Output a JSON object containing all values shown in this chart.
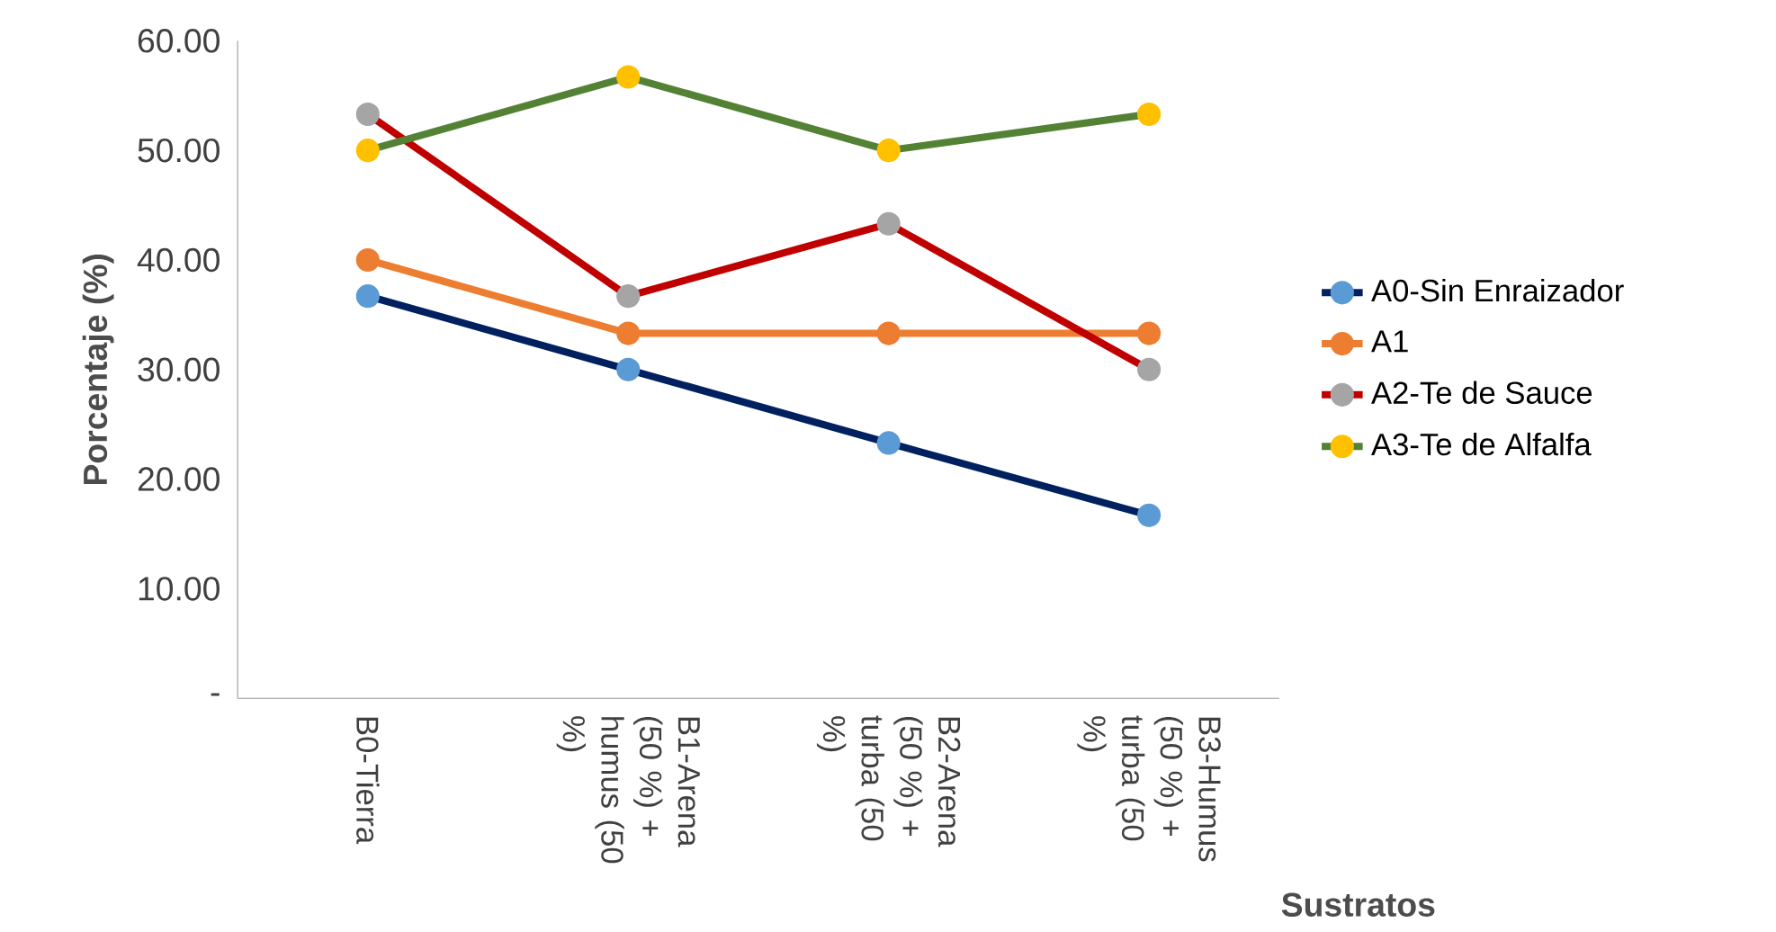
{
  "chart_data": {
    "type": "line",
    "xlabel": "Sustratos",
    "ylabel": "Porcentaje (%)",
    "categories": [
      "B0-Tierra",
      "B1-Arena (50 %) + humus (50 %)",
      "B2-Arena (50 %) + turba (50 %)",
      "B3-Humus (50 %) + turba (50 %)"
    ],
    "series": [
      {
        "name": "A0-Sin Enraizador",
        "color": "#002060",
        "colors": [
          "#5b9bd5",
          "#5b9bd5",
          "#5b9bd5",
          "#5b9bd5"
        ],
        "values": [
          36.7,
          30.0,
          23.3,
          16.7
        ]
      },
      {
        "name": "A1",
        "color": "#ed7d31",
        "colors": [
          "#ed7d31",
          "#ed7d31",
          "#ed7d31",
          "#ed7d31"
        ],
        "values": [
          40.0,
          33.3,
          33.3,
          33.3
        ]
      },
      {
        "name": "A2-Te de Sauce",
        "color": "#c00000",
        "colors": [
          "#a5a5a5",
          "#a5a5a5",
          "#a5a5a5",
          "#a5a5a5"
        ],
        "values": [
          53.3,
          36.7,
          43.3,
          30.0
        ]
      },
      {
        "name": "A3-Te de Alfalfa",
        "color": "#548235",
        "colors": [
          "#ffc000",
          "#ffc000",
          "#ffc000",
          "#ffc000"
        ],
        "values": [
          50.0,
          56.7,
          50.0,
          53.3
        ]
      }
    ],
    "ylim": [
      0,
      60
    ],
    "yticks": [
      {
        "value": 0,
        "label": "-"
      },
      {
        "value": 10,
        "label": "10.00"
      },
      {
        "value": 20,
        "label": "20.00"
      },
      {
        "value": 30,
        "label": "30.00"
      },
      {
        "value": 40,
        "label": "40.00"
      },
      {
        "value": 50,
        "label": "50.00"
      },
      {
        "value": 60,
        "label": "60.00"
      }
    ],
    "grid": false,
    "legend": "right",
    "marker": "circle",
    "line_style": "solid"
  }
}
